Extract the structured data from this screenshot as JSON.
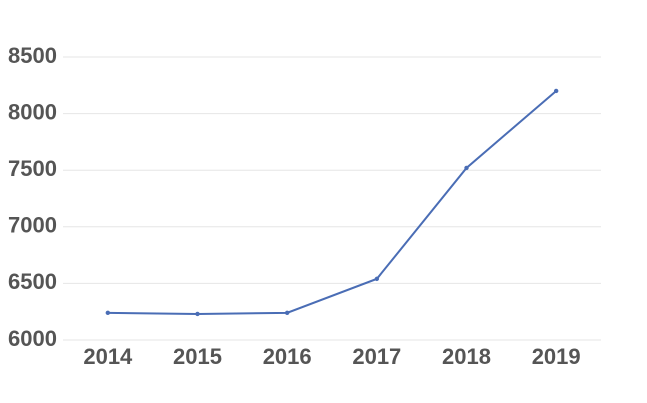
{
  "chart_data": {
    "type": "line",
    "categories": [
      "2014",
      "2015",
      "2016",
      "2017",
      "2018",
      "2019"
    ],
    "series": [
      {
        "name": null,
        "color": "#4a6db5",
        "values": [
          6240,
          6230,
          6240,
          6540,
          7520,
          8200
        ]
      }
    ],
    "ylim": [
      6000,
      8500
    ],
    "yticks": [
      6000,
      6500,
      7000,
      7500,
      8000,
      8500
    ],
    "grid": true
  }
}
